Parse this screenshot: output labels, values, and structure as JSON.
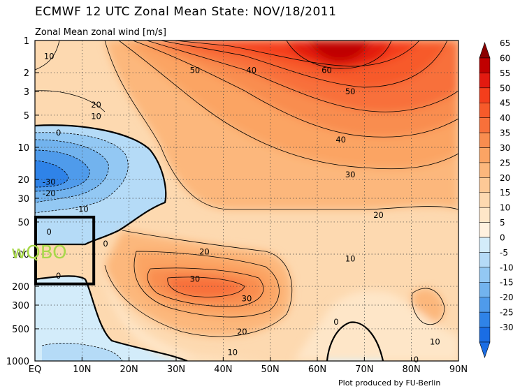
{
  "chart_data": {
    "type": "heatmap",
    "title": "ECMWF 12 UTC Zonal Mean State: NOV/18/2011",
    "subtitle": "Zonal Mean zonal wind [m/s]",
    "x_ticks": [
      "EQ",
      "10N",
      "20N",
      "30N",
      "40N",
      "50N",
      "60N",
      "70N",
      "80N",
      "90N"
    ],
    "x_range": [
      0,
      90
    ],
    "y_ticks": [
      1,
      2,
      3,
      5,
      10,
      20,
      30,
      50,
      100,
      200,
      300,
      500,
      1000
    ],
    "y_range": [
      1000,
      1
    ],
    "y_scale": "log",
    "y_reversed": true,
    "grid": "dotted",
    "colorbar": {
      "levels": [
        65,
        60,
        55,
        50,
        45,
        40,
        35,
        30,
        25,
        20,
        15,
        10,
        5,
        0,
        -5,
        -10,
        -15,
        -20,
        -25,
        -30
      ],
      "colors": [
        "#8b0000",
        "#c00000",
        "#e31a10",
        "#f43e1c",
        "#f75a2a",
        "#f8703a",
        "#f98d4f",
        "#fba464",
        "#fcb77c",
        "#fdc996",
        "#fdd9b0",
        "#fee6c8",
        "#fff1df",
        "#d3ecfa",
        "#b5dbf7",
        "#93c8f3",
        "#72b3ee",
        "#4f9beb",
        "#2f83e8",
        "#1a6de4"
      ],
      "extend": "both"
    },
    "contour_labels": [
      {
        "text": "10",
        "lat": 3,
        "p": 1.4
      },
      {
        "text": "50",
        "lat": 34,
        "p": 1.9
      },
      {
        "text": "40",
        "lat": 46,
        "p": 1.9
      },
      {
        "text": "60",
        "lat": 62,
        "p": 1.9
      },
      {
        "text": "50",
        "lat": 67,
        "p": 3
      },
      {
        "text": "20",
        "lat": 13,
        "p": 4
      },
      {
        "text": "10",
        "lat": 13,
        "p": 5.1
      },
      {
        "text": "0",
        "lat": 5,
        "p": 7.3
      },
      {
        "text": "40",
        "lat": 65,
        "p": 8.5
      },
      {
        "text": "-30",
        "lat": 3,
        "p": 21
      },
      {
        "text": "-20",
        "lat": 3,
        "p": 27
      },
      {
        "text": "-10",
        "lat": 10,
        "p": 38
      },
      {
        "text": "30",
        "lat": 67,
        "p": 18
      },
      {
        "text": "20",
        "lat": 73,
        "p": 43
      },
      {
        "text": "0",
        "lat": 15,
        "p": 80
      },
      {
        "text": "0",
        "lat": 3,
        "p": 62
      },
      {
        "text": "20",
        "lat": 36,
        "p": 95
      },
      {
        "text": "10",
        "lat": 67,
        "p": 110
      },
      {
        "text": "0",
        "lat": 5,
        "p": 160
      },
      {
        "text": "30",
        "lat": 34,
        "p": 170
      },
      {
        "text": "30",
        "lat": 45,
        "p": 260
      },
      {
        "text": "0",
        "lat": 64,
        "p": 430
      },
      {
        "text": "20",
        "lat": 44,
        "p": 530
      },
      {
        "text": "10",
        "lat": 42,
        "p": 830
      },
      {
        "text": "10",
        "lat": 85,
        "p": 660
      },
      {
        "text": "0",
        "lat": 81,
        "p": 970
      }
    ],
    "annotation": {
      "text": "wQBO",
      "box": {
        "lat": [
          0,
          12.5
        ],
        "p": [
          45,
          190
        ]
      }
    }
  },
  "credit": "Plot produced by FU-Berlin"
}
